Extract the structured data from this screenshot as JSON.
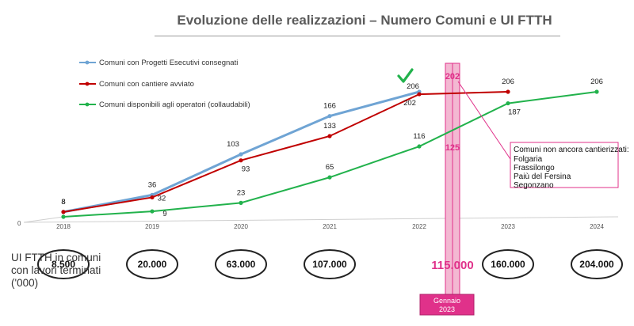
{
  "title": "Evoluzione delle realizzazioni – Numero Comuni e UI FTTH",
  "ui_label": "UI FTTH in comuni\ncon lavori terminati\n('000)",
  "colors": {
    "progetti": "#6fa4d4",
    "cantiere": "#c00000",
    "disponibili": "#22b24c",
    "highlight": "#e0318a",
    "check": "#22b24c"
  },
  "chart_data": {
    "type": "line",
    "categories": [
      "2018",
      "2019",
      "2020",
      "2021",
      "2022",
      "2023",
      "2024"
    ],
    "series": [
      {
        "name": "Comuni con Progetti Esecutivi consegnati",
        "color": "#6fa4d4",
        "values": [
          8,
          36,
          103,
          166,
          206,
          null,
          null
        ]
      },
      {
        "name": "Comuni con cantiere avviato",
        "color": "#c00000",
        "values": [
          8,
          32,
          93,
          133,
          202,
          206,
          null
        ]
      },
      {
        "name": "Comuni disponibili agli operatori (collaudabili)",
        "color": "#22b24c",
        "values": [
          0,
          9,
          23,
          65,
          116,
          187,
          206
        ]
      }
    ],
    "ylim": [
      0,
      220
    ],
    "zero_label": "0",
    "highlight": {
      "after_category": "2022",
      "top_value": "202",
      "mid_value": "125",
      "bottom_value": "115.000",
      "date_label": "Gennaio 2023"
    },
    "annotation": {
      "heading": "Comuni non ancora cantierizzati:",
      "items": [
        "Folgaria",
        "Frassilongo",
        "Paiù del Fersina",
        "Segonzano"
      ]
    },
    "ui_values": [
      "8.500",
      "20.000",
      "63.000",
      "107.000",
      null,
      "160.000",
      "204.000"
    ]
  }
}
